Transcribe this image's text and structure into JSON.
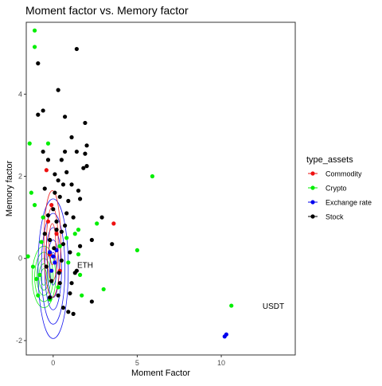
{
  "chart_data": {
    "type": "scatter",
    "title": "Moment factor vs. Memory factor",
    "xlabel": "Moment Factor",
    "ylabel": "Memory factor",
    "xlim": [
      -1.6,
      14.4
    ],
    "ylim": [
      -2.35,
      5.75
    ],
    "x_ticks": [
      0,
      5,
      10
    ],
    "x_tick_labels": [
      "0",
      "5",
      "10"
    ],
    "y_ticks": [
      -2,
      0,
      2,
      4
    ],
    "y_tick_labels": [
      "-2",
      "0",
      "2",
      "4"
    ],
    "grid": false,
    "legend": {
      "title": "type_assets",
      "position": "right",
      "entries": [
        "Commodity",
        "Crypto",
        "Exchange rate",
        "Stock"
      ]
    },
    "annotations": [
      {
        "text": "ETH",
        "x": 1.9,
        "y": -0.15
      },
      {
        "text": "USDT",
        "x": 13.1,
        "y": -1.15
      }
    ],
    "density_contours": true,
    "series": [
      {
        "name": "Commodity",
        "color": "#ee1111",
        "points": [
          [
            3.6,
            0.85
          ],
          [
            -0.4,
            2.15
          ],
          [
            -0.1,
            1.3
          ],
          [
            0.2,
            0.6
          ],
          [
            -0.3,
            0.9
          ],
          [
            0.4,
            -0.3
          ],
          [
            -0.2,
            0.1
          ]
        ]
      },
      {
        "name": "Crypto",
        "color": "#00ee00",
        "points": [
          [
            -1.1,
            5.55
          ],
          [
            -1.1,
            5.15
          ],
          [
            -1.4,
            2.8
          ],
          [
            -0.3,
            2.8
          ],
          [
            -1.3,
            1.6
          ],
          [
            -1.1,
            1.3
          ],
          [
            -1.5,
            0.05
          ],
          [
            -1.2,
            -0.2
          ],
          [
            -1.0,
            -0.5
          ],
          [
            -0.9,
            -0.9
          ],
          [
            -0.8,
            -0.4
          ],
          [
            -0.7,
            0.4
          ],
          [
            -0.6,
            1.0
          ],
          [
            0.8,
            0.5
          ],
          [
            1.3,
            0.6
          ],
          [
            1.5,
            0.1
          ],
          [
            1.6,
            -0.4
          ],
          [
            1.7,
            -0.9
          ],
          [
            2.6,
            0.85
          ],
          [
            3.0,
            -0.75
          ],
          [
            5.9,
            2.0
          ],
          [
            5.0,
            0.2
          ],
          [
            10.6,
            -1.15
          ],
          [
            1.5,
            0.7
          ],
          [
            0.3,
            -0.7
          ],
          [
            -0.2,
            -1.0
          ],
          [
            0.4,
            0.3
          ],
          [
            0.9,
            -0.1
          ]
        ]
      },
      {
        "name": "Exchange rate",
        "color": "#0000ee",
        "points": [
          [
            10.2,
            -1.9
          ],
          [
            10.3,
            -1.85
          ],
          [
            -0.2,
            0.15
          ],
          [
            0.1,
            -0.1
          ],
          [
            -0.1,
            -0.3
          ],
          [
            0.2,
            0.2
          ],
          [
            0.0,
            0.05
          ]
        ]
      },
      {
        "name": "Stock",
        "color": "#000000",
        "points": [
          [
            1.4,
            5.1
          ],
          [
            -0.9,
            4.75
          ],
          [
            0.3,
            4.1
          ],
          [
            -0.6,
            3.6
          ],
          [
            -0.9,
            3.5
          ],
          [
            0.7,
            3.45
          ],
          [
            1.9,
            3.3
          ],
          [
            1.1,
            2.95
          ],
          [
            2.0,
            2.75
          ],
          [
            -0.6,
            2.6
          ],
          [
            -0.3,
            2.4
          ],
          [
            0.5,
            2.4
          ],
          [
            0.7,
            2.6
          ],
          [
            1.4,
            2.6
          ],
          [
            1.9,
            2.55
          ],
          [
            1.8,
            2.2
          ],
          [
            2.0,
            2.25
          ],
          [
            1.5,
            1.65
          ],
          [
            1.1,
            1.8
          ],
          [
            0.4,
            1.5
          ],
          [
            -0.5,
            1.7
          ],
          [
            0.8,
            1.1
          ],
          [
            1.6,
            1.45
          ],
          [
            0.9,
            1.4
          ],
          [
            1.2,
            1.0
          ],
          [
            2.9,
            1.0
          ],
          [
            2.3,
            0.45
          ],
          [
            3.5,
            0.35
          ],
          [
            1.6,
            0.3
          ],
          [
            1.4,
            -0.3
          ],
          [
            1.3,
            -0.35
          ],
          [
            2.3,
            -1.05
          ],
          [
            1.2,
            -1.35
          ],
          [
            0.9,
            -1.3
          ],
          [
            1.0,
            -0.85
          ],
          [
            0.6,
            -1.2
          ],
          [
            -0.2,
            -0.95
          ],
          [
            0.4,
            -0.6
          ],
          [
            0.2,
            0.9
          ],
          [
            -0.3,
            1.05
          ],
          [
            0.6,
            0.35
          ],
          [
            0.1,
            2.05
          ],
          [
            -0.2,
            0.45
          ],
          [
            0.3,
            1.9
          ],
          [
            0.0,
            1.2
          ],
          [
            0.5,
            -0.05
          ],
          [
            -0.4,
            -0.2
          ],
          [
            0.2,
            0.7
          ],
          [
            0.7,
            0.8
          ],
          [
            -0.1,
            -0.55
          ],
          [
            0.3,
            -0.9
          ],
          [
            0.8,
            2.1
          ],
          [
            0.1,
            1.6
          ],
          [
            0.5,
            0.65
          ],
          [
            1.0,
            0.15
          ],
          [
            -0.5,
            0.6
          ],
          [
            0.35,
            -0.35
          ],
          [
            0.05,
            0.25
          ],
          [
            1.1,
            -0.6
          ],
          [
            0.6,
            1.8
          ]
        ]
      }
    ]
  }
}
